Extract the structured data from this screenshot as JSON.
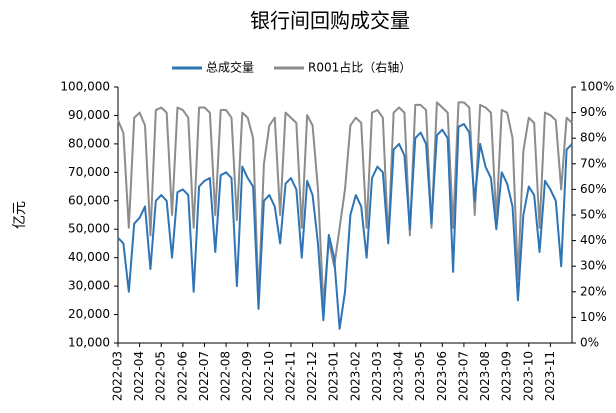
{
  "chart_data": {
    "type": "line",
    "title": "银行间回购成交量",
    "ylabel": "亿元",
    "legend_position": "top",
    "categories": [
      "2022-03",
      null,
      null,
      null,
      "2022-04",
      null,
      null,
      null,
      "2022-05",
      null,
      null,
      null,
      "2022-06",
      null,
      null,
      null,
      "2022-07",
      null,
      null,
      null,
      "2022-08",
      null,
      null,
      null,
      "2022-09",
      null,
      null,
      null,
      "2022-10",
      null,
      null,
      null,
      "2022-11",
      null,
      null,
      null,
      "2022-12",
      null,
      null,
      null,
      "2023-01",
      null,
      null,
      null,
      "2023-02",
      null,
      null,
      null,
      "2023-03",
      null,
      null,
      null,
      "2023-04",
      null,
      null,
      null,
      "2023-05",
      null,
      null,
      null,
      "2023-06",
      null,
      null,
      null,
      "2023-07",
      null,
      null,
      null,
      "2023-08",
      null,
      null,
      null,
      "2023-09",
      null,
      null,
      null,
      "2023-10",
      null,
      null,
      null,
      "2023-11",
      null,
      null,
      null,
      null
    ],
    "series": [
      {
        "name": "总成交量",
        "color": "#2e75b6",
        "values": [
          47000,
          45000,
          28000,
          52000,
          54000,
          58000,
          36000,
          60000,
          62000,
          60000,
          40000,
          63000,
          64000,
          62000,
          28000,
          65000,
          67000,
          68000,
          42000,
          69000,
          70000,
          68000,
          30000,
          72000,
          68000,
          65000,
          22000,
          60000,
          62000,
          58000,
          45000,
          66000,
          68000,
          64000,
          40000,
          67000,
          62000,
          45000,
          18000,
          48000,
          40000,
          15000,
          28000,
          55000,
          62000,
          58000,
          40000,
          68000,
          72000,
          70000,
          45000,
          78000,
          80000,
          76000,
          50000,
          82000,
          84000,
          80000,
          52000,
          83000,
          85000,
          82000,
          35000,
          86000,
          87000,
          84000,
          60000,
          80000,
          72000,
          68000,
          50000,
          70000,
          66000,
          58000,
          25000,
          55000,
          65000,
          62000,
          42000,
          67000,
          64000,
          60000,
          37000,
          78000,
          80000
        ]
      },
      {
        "name": "R001占比（右轴）",
        "color": "#8c8c8c",
        "axis": "y2",
        "values": [
          87,
          82,
          45,
          88,
          90,
          85,
          42,
          91,
          92,
          90,
          50,
          92,
          91,
          88,
          45,
          92,
          92,
          90,
          50,
          91,
          91,
          88,
          48,
          90,
          88,
          80,
          17,
          70,
          85,
          88,
          50,
          90,
          88,
          86,
          45,
          89,
          85,
          60,
          15,
          40,
          30,
          45,
          60,
          85,
          88,
          86,
          45,
          90,
          91,
          88,
          40,
          90,
          92,
          90,
          42,
          93,
          93,
          91,
          45,
          94,
          92,
          90,
          45,
          94,
          94,
          92,
          50,
          93,
          92,
          90,
          48,
          91,
          90,
          80,
          25,
          75,
          88,
          86,
          45,
          90,
          89,
          87,
          60,
          88,
          86
        ]
      }
    ],
    "ylim": [
      10000,
      100000
    ],
    "yticks": [
      {
        "value": 10000,
        "label": "10,000"
      },
      {
        "value": 20000,
        "label": "20,000"
      },
      {
        "value": 30000,
        "label": "30,000"
      },
      {
        "value": 40000,
        "label": "40,000"
      },
      {
        "value": 50000,
        "label": "50,000"
      },
      {
        "value": 60000,
        "label": "60,000"
      },
      {
        "value": 70000,
        "label": "70,000"
      },
      {
        "value": 80000,
        "label": "80,000"
      },
      {
        "value": 90000,
        "label": "90,000"
      },
      {
        "value": 100000,
        "label": "100,000"
      }
    ],
    "y2lim": [
      0,
      100
    ],
    "y2ticks": [
      {
        "value": 0,
        "label": "0%"
      },
      {
        "value": 10,
        "label": "10%"
      },
      {
        "value": 20,
        "label": "20%"
      },
      {
        "value": 30,
        "label": "30%"
      },
      {
        "value": 40,
        "label": "40%"
      },
      {
        "value": 50,
        "label": "50%"
      },
      {
        "value": 60,
        "label": "60%"
      },
      {
        "value": 70,
        "label": "70%"
      },
      {
        "value": 80,
        "label": "80%"
      },
      {
        "value": 90,
        "label": "90%"
      },
      {
        "value": 100,
        "label": "100%"
      }
    ]
  }
}
